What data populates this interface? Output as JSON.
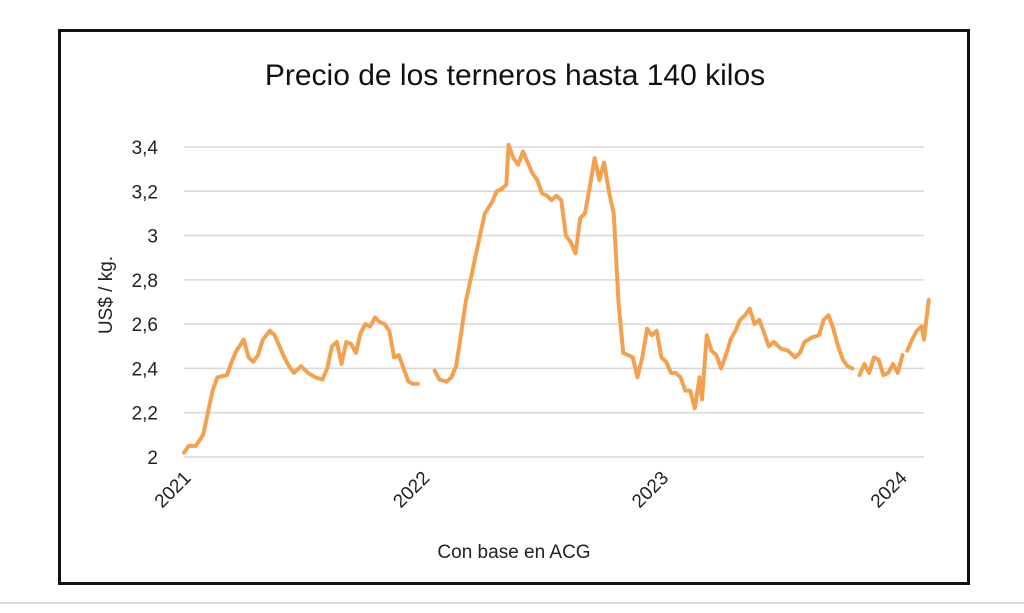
{
  "colors": {
    "line": "#F4A14F",
    "grid": "#d9d9d9",
    "frame": "#111111",
    "text": "#222222"
  },
  "chart_data": {
    "type": "line",
    "title": "Precio de los terneros hasta 140 kilos",
    "xlabel": "Con base en ACG",
    "ylabel": "US$ / kg.",
    "ylim": [
      2,
      3.4
    ],
    "xlim": [
      2021,
      2024.1
    ],
    "grid": true,
    "yticks": [
      {
        "value": 2,
        "label": "2"
      },
      {
        "value": 2.2,
        "label": "2,2"
      },
      {
        "value": 2.4,
        "label": "2,4"
      },
      {
        "value": 2.6,
        "label": "2,6"
      },
      {
        "value": 2.8,
        "label": "2,8"
      },
      {
        "value": 3,
        "label": "3"
      },
      {
        "value": 3.2,
        "label": "3,2"
      },
      {
        "value": 3.4,
        "label": "3,4"
      }
    ],
    "xticks": [
      {
        "value": 2021,
        "label": "2021"
      },
      {
        "value": 2022,
        "label": "2022"
      },
      {
        "value": 2023,
        "label": "2023"
      },
      {
        "value": 2024,
        "label": "2024"
      }
    ],
    "series": [
      {
        "segments": [
          [
            [
              2021.0,
              2.02
            ],
            [
              2021.02,
              2.05
            ],
            [
              2021.05,
              2.05
            ],
            [
              2021.08,
              2.1
            ],
            [
              2021.1,
              2.2
            ],
            [
              2021.12,
              2.3
            ],
            [
              2021.14,
              2.36
            ],
            [
              2021.18,
              2.37
            ],
            [
              2021.2,
              2.43
            ],
            [
              2021.22,
              2.48
            ],
            [
              2021.25,
              2.53
            ],
            [
              2021.27,
              2.45
            ],
            [
              2021.29,
              2.43
            ],
            [
              2021.31,
              2.46
            ],
            [
              2021.33,
              2.53
            ],
            [
              2021.36,
              2.57
            ],
            [
              2021.38,
              2.55
            ],
            [
              2021.4,
              2.5
            ],
            [
              2021.42,
              2.45
            ],
            [
              2021.44,
              2.41
            ],
            [
              2021.46,
              2.38
            ],
            [
              2021.49,
              2.41
            ],
            [
              2021.52,
              2.38
            ],
            [
              2021.55,
              2.36
            ],
            [
              2021.58,
              2.35
            ],
            [
              2021.6,
              2.4
            ],
            [
              2021.62,
              2.5
            ],
            [
              2021.64,
              2.52
            ],
            [
              2021.66,
              2.42
            ],
            [
              2021.68,
              2.52
            ],
            [
              2021.7,
              2.51
            ],
            [
              2021.72,
              2.47
            ],
            [
              2021.74,
              2.56
            ],
            [
              2021.76,
              2.6
            ],
            [
              2021.78,
              2.59
            ],
            [
              2021.8,
              2.63
            ],
            [
              2021.82,
              2.61
            ],
            [
              2021.84,
              2.6
            ],
            [
              2021.86,
              2.57
            ],
            [
              2021.88,
              2.45
            ],
            [
              2021.9,
              2.46
            ],
            [
              2021.92,
              2.4
            ],
            [
              2021.94,
              2.34
            ],
            [
              2021.96,
              2.33
            ],
            [
              2021.98,
              2.33
            ]
          ],
          [
            [
              2022.05,
              2.39
            ],
            [
              2022.07,
              2.35
            ],
            [
              2022.1,
              2.34
            ],
            [
              2022.12,
              2.36
            ],
            [
              2022.14,
              2.41
            ],
            [
              2022.16,
              2.55
            ],
            [
              2022.18,
              2.7
            ],
            [
              2022.2,
              2.8
            ],
            [
              2022.22,
              2.9
            ],
            [
              2022.24,
              3.0
            ],
            [
              2022.26,
              3.1
            ],
            [
              2022.29,
              3.15
            ],
            [
              2022.31,
              3.2
            ],
            [
              2022.33,
              3.21
            ],
            [
              2022.35,
              3.23
            ],
            [
              2022.36,
              3.41
            ],
            [
              2022.38,
              3.35
            ],
            [
              2022.4,
              3.32
            ],
            [
              2022.42,
              3.38
            ],
            [
              2022.44,
              3.33
            ],
            [
              2022.46,
              3.28
            ],
            [
              2022.48,
              3.25
            ],
            [
              2022.5,
              3.19
            ],
            [
              2022.52,
              3.18
            ],
            [
              2022.54,
              3.16
            ],
            [
              2022.56,
              3.18
            ],
            [
              2022.58,
              3.16
            ],
            [
              2022.6,
              3.0
            ],
            [
              2022.62,
              2.97
            ],
            [
              2022.64,
              2.92
            ],
            [
              2022.66,
              3.08
            ],
            [
              2022.68,
              3.1
            ],
            [
              2022.7,
              3.22
            ],
            [
              2022.72,
              3.35
            ],
            [
              2022.74,
              3.25
            ],
            [
              2022.76,
              3.33
            ],
            [
              2022.78,
              3.2
            ],
            [
              2022.8,
              3.1
            ],
            [
              2022.82,
              2.7
            ],
            [
              2022.84,
              2.47
            ],
            [
              2022.86,
              2.46
            ],
            [
              2022.88,
              2.45
            ],
            [
              2022.9,
              2.36
            ],
            [
              2022.92,
              2.45
            ],
            [
              2022.94,
              2.58
            ],
            [
              2022.96,
              2.55
            ],
            [
              2022.98,
              2.57
            ],
            [
              2023.0,
              2.45
            ],
            [
              2023.02,
              2.43
            ],
            [
              2023.04,
              2.38
            ],
            [
              2023.06,
              2.38
            ],
            [
              2023.08,
              2.36
            ],
            [
              2023.1,
              2.3
            ],
            [
              2023.12,
              2.3
            ],
            [
              2023.14,
              2.22
            ],
            [
              2023.16,
              2.36
            ],
            [
              2023.17,
              2.26
            ],
            [
              2023.19,
              2.55
            ],
            [
              2023.21,
              2.48
            ],
            [
              2023.23,
              2.46
            ],
            [
              2023.25,
              2.4
            ],
            [
              2023.27,
              2.46
            ],
            [
              2023.29,
              2.53
            ],
            [
              2023.31,
              2.57
            ],
            [
              2023.33,
              2.62
            ],
            [
              2023.35,
              2.64
            ],
            [
              2023.37,
              2.67
            ],
            [
              2023.39,
              2.6
            ],
            [
              2023.41,
              2.62
            ],
            [
              2023.43,
              2.56
            ],
            [
              2023.45,
              2.5
            ],
            [
              2023.47,
              2.52
            ],
            [
              2023.5,
              2.49
            ],
            [
              2023.53,
              2.48
            ],
            [
              2023.56,
              2.45
            ],
            [
              2023.58,
              2.47
            ],
            [
              2023.6,
              2.52
            ],
            [
              2023.63,
              2.54
            ],
            [
              2023.66,
              2.55
            ],
            [
              2023.68,
              2.62
            ],
            [
              2023.7,
              2.64
            ],
            [
              2023.72,
              2.58
            ],
            [
              2023.74,
              2.5
            ],
            [
              2023.76,
              2.44
            ],
            [
              2023.78,
              2.41
            ],
            [
              2023.8,
              2.4
            ]
          ],
          [
            [
              2023.83,
              2.37
            ],
            [
              2023.85,
              2.42
            ],
            [
              2023.87,
              2.38
            ],
            [
              2023.89,
              2.45
            ],
            [
              2023.91,
              2.44
            ],
            [
              2023.93,
              2.37
            ],
            [
              2023.95,
              2.38
            ],
            [
              2023.97,
              2.42
            ],
            [
              2023.99,
              2.38
            ],
            [
              2024.01,
              2.46
            ]
          ],
          [
            [
              2024.03,
              2.48
            ],
            [
              2024.05,
              2.53
            ],
            [
              2024.07,
              2.57
            ],
            [
              2024.09,
              2.59
            ],
            [
              2024.1,
              2.53
            ],
            [
              2024.12,
              2.71
            ]
          ]
        ]
      }
    ]
  }
}
